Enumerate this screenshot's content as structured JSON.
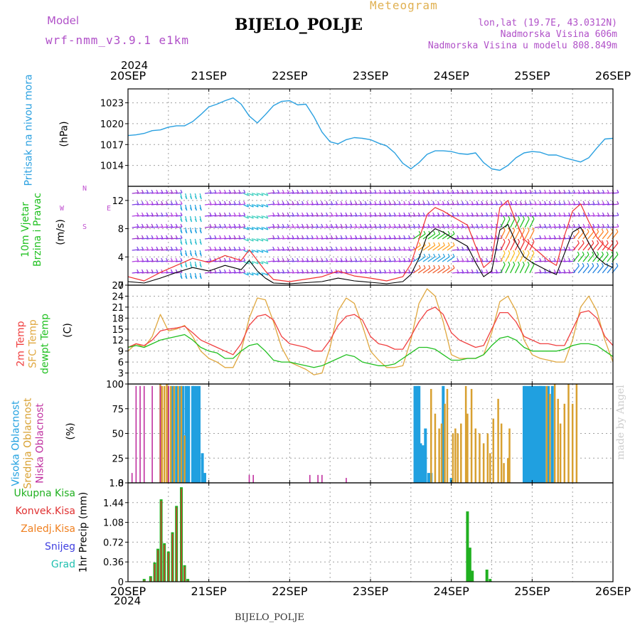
{
  "header": {
    "model_label": "Model",
    "model_name": "wrf-nmm_v3.9.1 e1km",
    "title": "BIJELO_POLJE",
    "meteogram_label": "Meteogram",
    "lonlat": "lon,lat (19.7E, 43.0312N)",
    "elevation": "Nadmorska Visina 606m",
    "model_elevation": "Nadmorska Visina u modelu 808.849m",
    "year": "2024",
    "footer_station": "BIJELO_POLJE",
    "watermark": "made by Angel"
  },
  "colors": {
    "title": "#000000",
    "model": "#b050c8",
    "meteogram": "#e0b050",
    "pressure": "#2aa0e0",
    "wind_speed": "#000000",
    "gust": "#f03030",
    "temp2m": "#f04040",
    "sfc_temp": "#e0a840",
    "dewpoint": "#20c020",
    "cloud_high": "#20a0e0",
    "cloud_mid": "#d8a030",
    "cloud_low": "#c030a0",
    "precip_total": "#20b020",
    "precip_conv": "#e03030",
    "precip_strat": "#f08020",
    "snow": "#4040e0",
    "hail": "#20c0b0"
  },
  "chart_data": [
    {
      "panel": "pressure",
      "type": "line",
      "x_ticks": [
        "20SEP",
        "21SEP",
        "22SEP",
        "23SEP",
        "24SEP",
        "25SEP",
        "26SEP"
      ],
      "ylabel_lines": [
        "Pritisak na nivou mora",
        "(hPa)"
      ],
      "ylim": [
        1011,
        1025
      ],
      "yticks": [
        1014,
        1017,
        1020,
        1023
      ],
      "series": [
        {
          "unit": "hPa",
          "x_days": [
            0,
            0.1,
            0.2,
            0.3,
            0.4,
            0.5,
            0.6,
            0.7,
            0.8,
            0.9,
            1.0,
            1.1,
            1.2,
            1.3,
            1.4,
            1.5,
            1.6,
            1.7,
            1.8,
            1.9,
            2.0,
            2.1,
            2.2,
            2.3,
            2.4,
            2.5,
            2.6,
            2.7,
            2.8,
            2.9,
            3.0,
            3.1,
            3.2,
            3.3,
            3.4,
            3.5,
            3.6,
            3.7,
            3.8,
            3.9,
            4.0,
            4.1,
            4.2,
            4.3,
            4.4,
            4.5,
            4.6,
            4.7,
            4.8,
            4.9,
            5.0,
            5.1,
            5.2,
            5.3,
            5.4,
            5.5,
            5.6,
            5.7,
            5.8,
            5.9,
            6.0
          ],
          "values": [
            1018.3,
            1018.4,
            1018.6,
            1019.0,
            1019.1,
            1019.5,
            1019.7,
            1019.7,
            1020.3,
            1021.3,
            1022.4,
            1022.8,
            1023.3,
            1023.7,
            1022.8,
            1021.1,
            1020.1,
            1021.3,
            1022.6,
            1023.2,
            1023.3,
            1022.7,
            1022.8,
            1021.0,
            1018.8,
            1017.4,
            1017.1,
            1017.7,
            1018.0,
            1017.9,
            1017.7,
            1017.2,
            1016.8,
            1015.8,
            1014.3,
            1013.5,
            1014.4,
            1015.6,
            1016.1,
            1016.1,
            1016.0,
            1015.7,
            1015.6,
            1015.8,
            1014.4,
            1013.5,
            1013.3,
            1014.0,
            1015.1,
            1015.8,
            1016.0,
            1015.9,
            1015.5,
            1015.5,
            1015.1,
            1014.8,
            1014.5,
            1015.1,
            1016.5,
            1017.8,
            1017.9
          ]
        }
      ]
    },
    {
      "panel": "wind",
      "type": "line",
      "ylabel_lines": [
        "10m Vjetar",
        "Brzina i Pravac",
        "(m/s)"
      ],
      "compass": [
        "N",
        "W",
        "E",
        "S"
      ],
      "ylim": [
        0,
        14
      ],
      "yticks": [
        0,
        4,
        8,
        12
      ],
      "series": [
        {
          "name": "speed",
          "x_days": [
            0,
            0.2,
            0.4,
            0.6,
            0.8,
            1.0,
            1.2,
            1.4,
            1.5,
            1.6,
            1.7,
            1.8,
            2.0,
            2.4,
            2.6,
            2.8,
            3.0,
            3.2,
            3.4,
            3.5,
            3.6,
            3.7,
            3.8,
            3.9,
            4.0,
            4.2,
            4.3,
            4.4,
            4.5,
            4.6,
            4.7,
            4.8,
            4.9,
            5.0,
            5.2,
            5.3,
            5.4,
            5.5,
            5.6,
            5.7,
            5.8,
            5.9,
            6.0
          ],
          "values": [
            0.5,
            0.3,
            1.0,
            1.8,
            2.5,
            2.0,
            2.8,
            2.2,
            3.5,
            2.0,
            1.0,
            0.3,
            0.2,
            0.5,
            1.0,
            0.6,
            0.4,
            0.2,
            0.5,
            1.5,
            3.8,
            7.0,
            8.0,
            7.5,
            6.8,
            5.5,
            3.2,
            1.2,
            2.0,
            7.8,
            8.6,
            6.0,
            4.0,
            3.2,
            2.0,
            1.5,
            4.5,
            7.5,
            8.2,
            6.0,
            4.0,
            3.0,
            2.5
          ]
        },
        {
          "name": "gust",
          "x_days": [
            0,
            0.2,
            0.4,
            0.6,
            0.8,
            1.0,
            1.2,
            1.4,
            1.5,
            1.6,
            1.7,
            1.8,
            2.0,
            2.4,
            2.6,
            2.8,
            3.0,
            3.2,
            3.4,
            3.5,
            3.6,
            3.7,
            3.8,
            3.9,
            4.0,
            4.2,
            4.3,
            4.4,
            4.5,
            4.6,
            4.7,
            4.8,
            4.9,
            5.0,
            5.2,
            5.3,
            5.4,
            5.5,
            5.6,
            5.7,
            5.8,
            5.9,
            6.0
          ],
          "values": [
            1.2,
            0.6,
            1.8,
            2.8,
            3.8,
            3.2,
            4.2,
            3.5,
            5.0,
            3.5,
            2.0,
            0.8,
            0.5,
            1.2,
            2.0,
            1.3,
            1.0,
            0.6,
            1.2,
            3.0,
            6.5,
            10.0,
            11.0,
            10.5,
            9.8,
            8.5,
            5.5,
            2.5,
            3.5,
            11.0,
            12.0,
            9.0,
            6.5,
            5.5,
            3.5,
            2.8,
            7.0,
            10.5,
            11.5,
            9.0,
            6.8,
            5.5,
            4.8
          ]
        }
      ]
    },
    {
      "panel": "temperature",
      "type": "line",
      "ylabel_lines": [
        "2m Temp",
        "SFC Temp",
        "dewpt Temp",
        "(C)"
      ],
      "ylim": [
        0,
        27
      ],
      "yticks": [
        0,
        3,
        6,
        9,
        12,
        15,
        18,
        21,
        24,
        27
      ],
      "series": [
        {
          "name": "2m",
          "x_days": [
            0,
            0.1,
            0.2,
            0.3,
            0.4,
            0.5,
            0.6,
            0.7,
            0.8,
            0.9,
            1.0,
            1.1,
            1.2,
            1.3,
            1.4,
            1.5,
            1.6,
            1.7,
            1.8,
            1.9,
            2.0,
            2.1,
            2.2,
            2.3,
            2.4,
            2.5,
            2.6,
            2.7,
            2.8,
            2.9,
            3.0,
            3.1,
            3.2,
            3.3,
            3.4,
            3.5,
            3.6,
            3.7,
            3.8,
            3.9,
            4.0,
            4.1,
            4.2,
            4.3,
            4.4,
            4.5,
            4.6,
            4.7,
            4.8,
            4.9,
            5.0,
            5.1,
            5.2,
            5.3,
            5.4,
            5.5,
            5.6,
            5.7,
            5.8,
            5.9,
            6.0
          ],
          "values": [
            10,
            11,
            10.5,
            12,
            14.5,
            15,
            15.3,
            15.8,
            14,
            12,
            11,
            10,
            9,
            8,
            11,
            16,
            18.5,
            19,
            17.5,
            13,
            11,
            10.5,
            10,
            9,
            9,
            12,
            16,
            18.5,
            19,
            17.5,
            13,
            11,
            10.5,
            9.5,
            9.5,
            13,
            17,
            20,
            21,
            19,
            14,
            12,
            11,
            10,
            10.5,
            15,
            19.5,
            19.5,
            17,
            13,
            12,
            11,
            11,
            10.5,
            10.5,
            15,
            19.5,
            20,
            18,
            13,
            10.5
          ]
        },
        {
          "name": "SFC",
          "x_days": [
            0,
            0.1,
            0.2,
            0.3,
            0.4,
            0.5,
            0.6,
            0.7,
            0.8,
            0.9,
            1.0,
            1.1,
            1.2,
            1.3,
            1.4,
            1.5,
            1.6,
            1.7,
            1.8,
            1.9,
            2.0,
            2.1,
            2.2,
            2.3,
            2.4,
            2.5,
            2.6,
            2.7,
            2.8,
            2.9,
            3.0,
            3.1,
            3.2,
            3.3,
            3.4,
            3.5,
            3.6,
            3.7,
            3.8,
            3.9,
            4.0,
            4.1,
            4.2,
            4.3,
            4.4,
            4.5,
            4.6,
            4.7,
            4.8,
            4.9,
            5.0,
            5.1,
            5.2,
            5.3,
            5.4,
            5.5,
            5.6,
            5.7,
            5.8,
            5.9,
            6.0
          ],
          "values": [
            9,
            11,
            10,
            13,
            19,
            14.5,
            15,
            16,
            13,
            9,
            7,
            6,
            4.5,
            4.5,
            9,
            18,
            23.5,
            23,
            17,
            10,
            6,
            5,
            4,
            2.5,
            3,
            10,
            20,
            23.5,
            22,
            16,
            9,
            6.5,
            4.5,
            4.5,
            5,
            12,
            22,
            26,
            24,
            17,
            8,
            7,
            7,
            7,
            8,
            14,
            22.5,
            24,
            20,
            12,
            8,
            7,
            6.5,
            6,
            6,
            12,
            21,
            24,
            20,
            12,
            6
          ]
        },
        {
          "name": "dewpt",
          "x_days": [
            0,
            0.1,
            0.2,
            0.3,
            0.4,
            0.5,
            0.6,
            0.7,
            0.8,
            0.9,
            1.0,
            1.1,
            1.2,
            1.3,
            1.4,
            1.5,
            1.6,
            1.7,
            1.8,
            1.9,
            2.0,
            2.1,
            2.2,
            2.3,
            2.4,
            2.5,
            2.6,
            2.7,
            2.8,
            2.9,
            3.0,
            3.1,
            3.2,
            3.3,
            3.4,
            3.5,
            3.6,
            3.7,
            3.8,
            3.9,
            4.0,
            4.1,
            4.2,
            4.3,
            4.4,
            4.5,
            4.6,
            4.7,
            4.8,
            4.9,
            5.0,
            5.1,
            5.2,
            5.3,
            5.4,
            5.5,
            5.6,
            5.7,
            5.8,
            5.9,
            6.0
          ],
          "values": [
            10,
            10.5,
            10,
            11,
            12,
            12.5,
            13,
            13.5,
            12,
            10,
            9,
            8.5,
            7,
            7,
            9,
            10.5,
            11,
            9,
            6.5,
            6,
            6,
            5.5,
            5,
            4.5,
            5,
            6,
            7,
            8,
            7.5,
            6,
            5.5,
            5,
            5,
            5.5,
            7,
            8.5,
            10,
            10,
            9.5,
            8,
            6.5,
            6.5,
            7,
            7,
            8,
            10.5,
            12.5,
            13,
            12,
            10,
            9,
            9,
            9,
            9,
            9.5,
            10.5,
            11,
            11,
            10.5,
            9,
            7.5
          ]
        }
      ]
    },
    {
      "panel": "clouds",
      "type": "bar",
      "ylabel_lines": [
        "Visoka Oblacnost",
        "Srednja Oblacnost",
        "Niska Oblacnost",
        "(%)"
      ],
      "ylim": [
        0,
        100
      ],
      "yticks": [
        0,
        25,
        50,
        75,
        100
      ],
      "series": [
        {
          "name": "high",
          "x_days": [
            0.55,
            0.6,
            0.65,
            0.68,
            0.72,
            0.75,
            0.8,
            0.82,
            0.85,
            0.88,
            0.92,
            0.95,
            3.55,
            3.58,
            3.6,
            3.62,
            3.65,
            3.68,
            3.72,
            3.75,
            3.9,
            4.0,
            4.9,
            4.92,
            4.95,
            4.98,
            5.0,
            5.02,
            5.05,
            5.08,
            5.1,
            5.12,
            5.15,
            5.2,
            5.25
          ],
          "values": [
            98,
            98,
            98,
            98,
            98,
            98,
            98,
            98,
            98,
            98,
            30,
            10,
            98,
            98,
            98,
            40,
            38,
            55,
            10,
            10,
            98,
            5,
            98,
            98,
            98,
            98,
            98,
            98,
            98,
            98,
            98,
            98,
            98,
            98,
            98
          ]
        },
        {
          "name": "mid",
          "x_days": [
            0.4,
            0.42,
            0.45,
            0.48,
            0.5,
            0.53,
            0.57,
            0.62,
            0.66,
            0.7,
            3.75,
            3.8,
            3.85,
            3.88,
            3.92,
            3.95,
            4.02,
            4.05,
            4.08,
            4.12,
            4.18,
            4.2,
            4.25,
            4.3,
            4.35,
            4.4,
            4.45,
            4.48,
            4.52,
            4.58,
            4.62,
            4.65,
            4.7,
            4.72,
            5.18,
            5.22,
            5.28,
            5.32,
            5.35,
            5.4,
            5.45,
            5.5,
            5.55
          ],
          "values": [
            100,
            98,
            98,
            100,
            98,
            98,
            98,
            98,
            98,
            48,
            95,
            70,
            55,
            60,
            80,
            95,
            50,
            55,
            50,
            60,
            98,
            70,
            95,
            55,
            50,
            40,
            50,
            30,
            65,
            85,
            60,
            20,
            25,
            55,
            98,
            90,
            100,
            85,
            60,
            80,
            100,
            80,
            100
          ]
        },
        {
          "name": "low",
          "x_days": [
            0.05,
            0.1,
            0.15,
            0.2,
            0.3,
            0.4,
            0.5,
            1.5,
            1.55,
            2.25,
            2.35,
            2.4,
            2.7
          ],
          "values": [
            10,
            98,
            98,
            98,
            98,
            98,
            98,
            8,
            8,
            8,
            8,
            8,
            5
          ]
        }
      ]
    },
    {
      "panel": "precipitation",
      "type": "bar",
      "ylabel_lines": [
        "1hr Precip (mm)"
      ],
      "legend": [
        "Ukupna Kisa",
        "Konvek.Kisa",
        "Zaledj.Kisa",
        "Snijeg",
        "Grad"
      ],
      "ylim": [
        0,
        1.8
      ],
      "yticks": [
        0,
        0.36,
        0.72,
        1.08,
        1.44,
        1.8
      ],
      "series": [
        {
          "name": "total",
          "x_days": [
            0.2,
            0.28,
            0.33,
            0.37,
            0.41,
            0.45,
            0.5,
            0.55,
            0.6,
            0.66,
            0.7,
            0.74,
            4.2,
            4.23,
            4.26,
            4.44,
            4.48
          ],
          "values": [
            0.05,
            0.1,
            0.35,
            0.6,
            1.5,
            0.7,
            0.55,
            0.9,
            1.38,
            1.72,
            0.3,
            0.05,
            1.28,
            0.62,
            0.2,
            0.22,
            0.05
          ]
        }
      ]
    }
  ]
}
